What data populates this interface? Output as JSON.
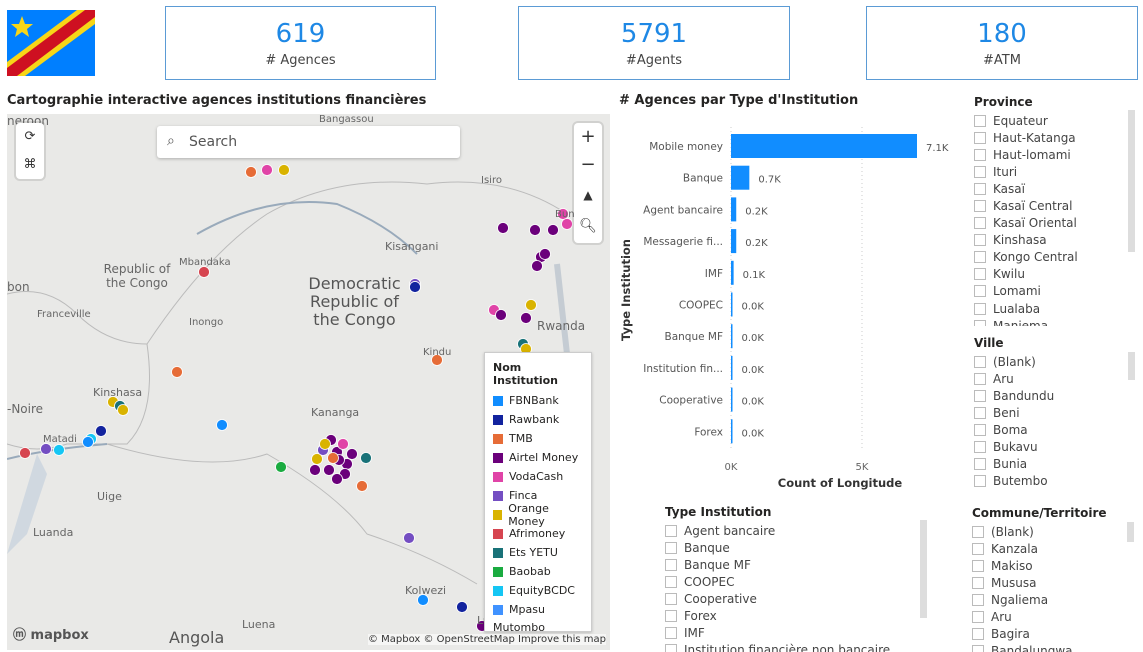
{
  "kpis": [
    {
      "value": "619",
      "label": "# Agences"
    },
    {
      "value": "5791",
      "label": "#Agents"
    },
    {
      "value": "180",
      "label": "#ATM"
    }
  ],
  "map": {
    "title": "Cartographie interactive agences institutions financières",
    "search_placeholder": "Search",
    "zoom_in": "+",
    "zoom_out": "−",
    "labels": [
      "neroon",
      "Bangassou",
      "Isiro",
      "Bun",
      "Republic of the Congo",
      "Mbandaka",
      "Kisangani",
      "Democratic Republic of the Congo",
      "bon",
      "Franceville",
      "Inongo",
      "Rwanda",
      "Kindu",
      "Kinshasa",
      "-Noire",
      "Matadi",
      "Kananga",
      "Uige",
      "Luanda",
      "Kolwezi",
      "Lubum",
      "Angola",
      "Luena"
    ],
    "attribution": "© Mapbox © OpenStreetMap",
    "improve": "Improve this map",
    "logo": "mapbox",
    "legend": {
      "title": "Nom Institution",
      "items": [
        {
          "name": "FBNBank",
          "color": "#118dff"
        },
        {
          "name": "Rawbank",
          "color": "#12239e"
        },
        {
          "name": "TMB",
          "color": "#e66c37"
        },
        {
          "name": "Airtel Money",
          "color": "#6b007b"
        },
        {
          "name": "VodaCash",
          "color": "#e044a7"
        },
        {
          "name": "Finca",
          "color": "#744ec2"
        },
        {
          "name": "Orange Money",
          "color": "#d9b300"
        },
        {
          "name": "Afrimoney",
          "color": "#d64550"
        },
        {
          "name": "Ets YETU",
          "color": "#197278"
        },
        {
          "name": "Baobab",
          "color": "#1aab40"
        },
        {
          "name": "EquityBCDC",
          "color": "#15c6f4"
        },
        {
          "name": "Mpasu",
          "color": "#4092ff"
        }
      ],
      "more": "Mutombo"
    }
  },
  "chart_data": {
    "type": "bar",
    "orientation": "horizontal",
    "title": "# Agences par Type d'Institution",
    "categories": [
      "Mobile money",
      "Banque",
      "Agent bancaire",
      "Messagerie fi...",
      "IMF",
      "COOPEC",
      "Banque MF",
      "Institution fin...",
      "Cooperative",
      "Forex"
    ],
    "values": [
      7100,
      700,
      200,
      200,
      100,
      20,
      15,
      10,
      10,
      10
    ],
    "data_labels": [
      "7.1K",
      "0.7K",
      "0.2K",
      "0.2K",
      "0.1K",
      "0.0K",
      "0.0K",
      "0.0K",
      "0.0K",
      "0.0K"
    ],
    "xlabel": "Count of Longitude",
    "ylabel": "Type Institution",
    "xticks": [
      "0K",
      "5K"
    ],
    "xlim": [
      0,
      7500
    ],
    "grid": true,
    "color": "#118dff"
  },
  "slicers": {
    "type": {
      "title": "Type Institution",
      "items": [
        "Agent bancaire",
        "Banque",
        "Banque MF",
        "COOPEC",
        "Cooperative",
        "Forex",
        "IMF",
        "Institution financière non bancaire"
      ]
    },
    "province": {
      "title": "Province",
      "items": [
        "Equateur",
        "Haut-Katanga",
        "Haut-lomami",
        "Ituri",
        "Kasaï",
        "Kasaï Central",
        "Kasaï Oriental",
        "Kinshasa",
        "Kongo Central",
        "Kwilu",
        "Lomami",
        "Lualaba",
        "Maniema"
      ]
    },
    "ville": {
      "title": "Ville",
      "items": [
        "(Blank)",
        "Aru",
        "Bandundu",
        "Beni",
        "Boma",
        "Bukavu",
        "Bunia",
        "Butembo"
      ]
    },
    "commune": {
      "title": "Commune/Territoire",
      "items": [
        "(Blank)",
        "Kanzala",
        "Makiso",
        "Mususa",
        "Ngaliema",
        "Aru",
        "Bagira",
        "Bandalungwa"
      ]
    }
  }
}
